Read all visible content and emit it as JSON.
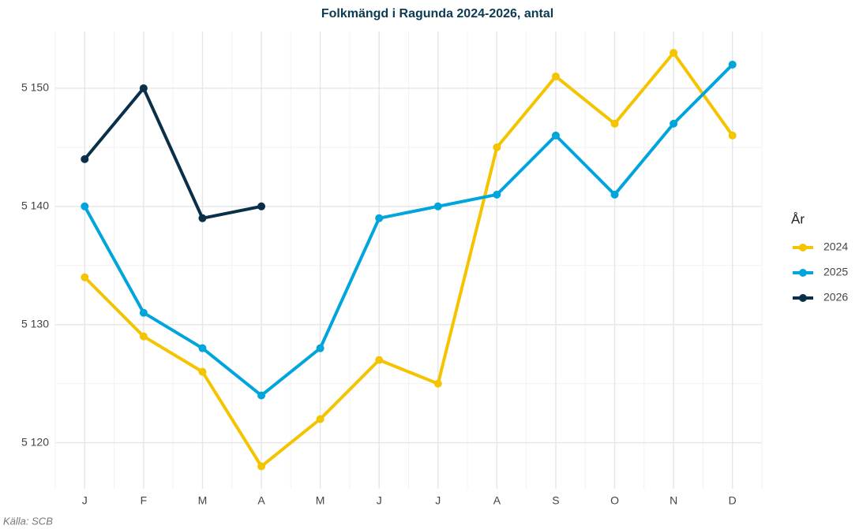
{
  "chart_data": {
    "type": "line",
    "title": "Folkmängd i Ragunda 2024-2026, antal",
    "caption": "Källa: SCB",
    "legend_title": "År",
    "legend_position": "right",
    "grid": true,
    "categories": [
      "J",
      "F",
      "M",
      "A",
      "M",
      "J",
      "J",
      "A",
      "S",
      "O",
      "N",
      "D"
    ],
    "ylim": [
      5116.1,
      5154.8
    ],
    "yticks": [
      {
        "value": 5120,
        "label": "5 120"
      },
      {
        "value": 5130,
        "label": "5 130"
      },
      {
        "value": 5140,
        "label": "5 140"
      },
      {
        "value": 5150,
        "label": "5 150"
      }
    ],
    "series": [
      {
        "name": "2024",
        "color": "#f5c400",
        "values": [
          5134,
          5129,
          5126,
          5118,
          5122,
          5127,
          5125,
          5145,
          5151,
          5147,
          5153,
          5146
        ]
      },
      {
        "name": "2025",
        "color": "#00a5dc",
        "values": [
          5140,
          5131,
          5128,
          5124,
          5128,
          5139,
          5140,
          5141,
          5146,
          5141,
          5147,
          5152
        ]
      },
      {
        "name": "2026",
        "color": "#0a3049",
        "values": [
          5144,
          5150,
          5139,
          5140,
          null,
          null,
          null,
          null,
          null,
          null,
          null,
          null
        ]
      }
    ]
  }
}
